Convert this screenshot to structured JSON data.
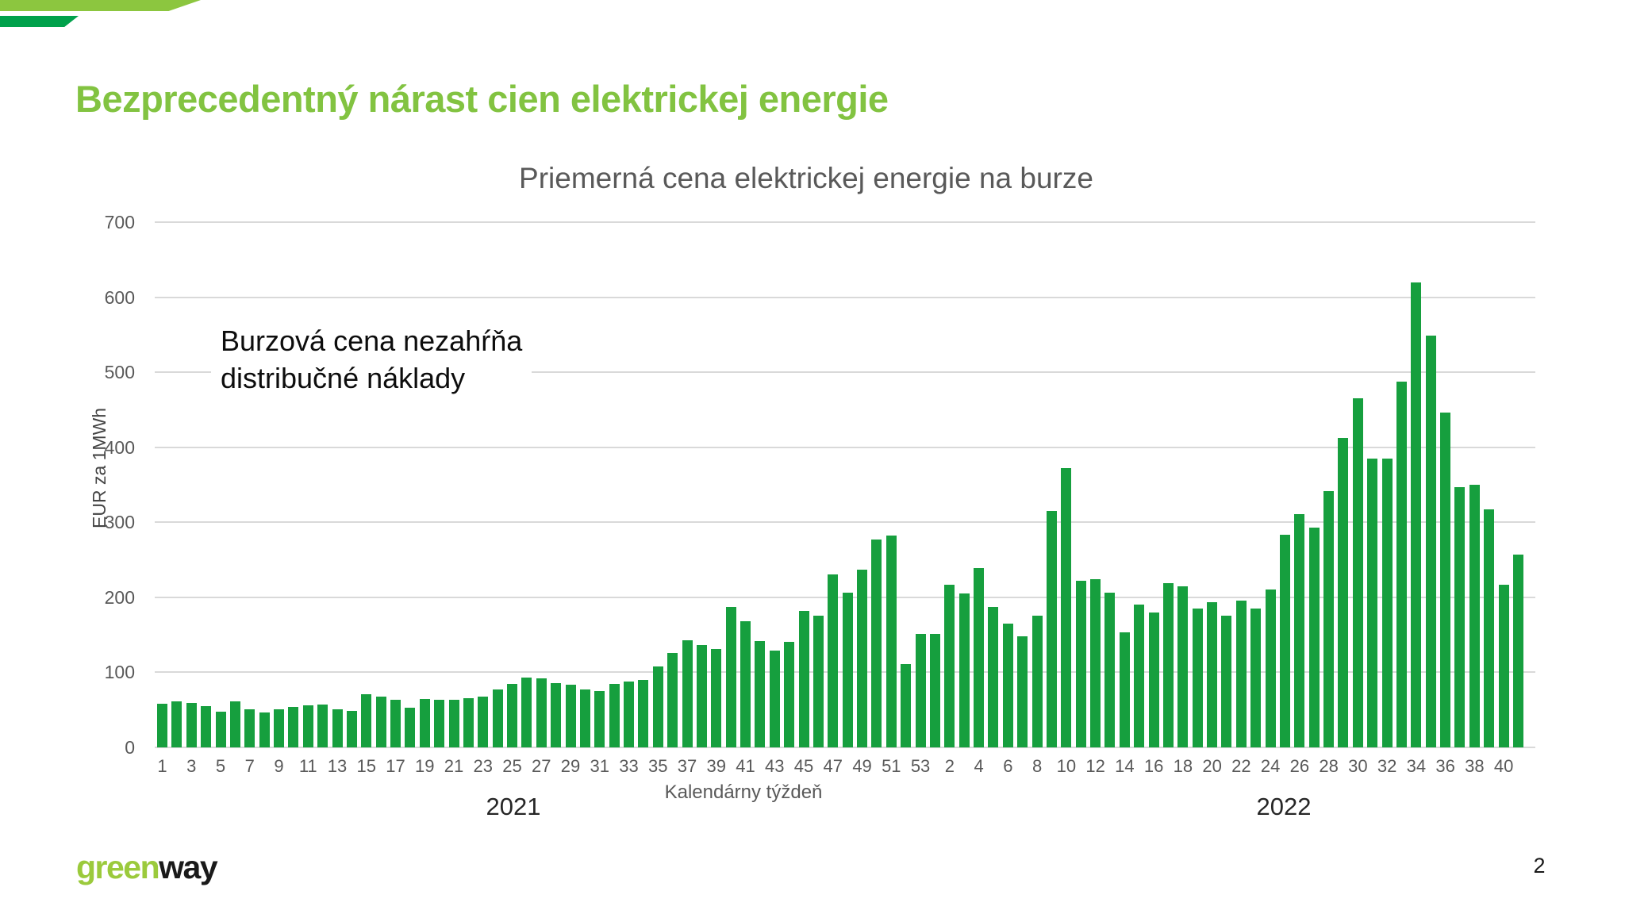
{
  "slide": {
    "title": "Bezprecedentný nárast cien elektrickej energie",
    "page_number": "2",
    "logo": {
      "green": "green",
      "way": "way"
    },
    "colors": {
      "accent_green": "#82C341",
      "deco_light_green": "#8CC63F",
      "deco_dark_green": "#00A14B",
      "bar_green": "#169F3E",
      "axis_gray": "#595959"
    }
  },
  "chart_data": {
    "type": "bar",
    "title": "Priemerná cena elektrickej energie na burze",
    "ylabel": "EUR za 1MWh",
    "xlabel": "Kalendárny týždeň",
    "annotation_lines": [
      "Burzová cena nezahŕňa",
      "distribučné náklady"
    ],
    "ylim": [
      0,
      700
    ],
    "yticks": [
      0,
      100,
      200,
      300,
      400,
      500,
      600,
      700
    ],
    "grid": true,
    "legend": "none",
    "bar_color": "#169F3E",
    "groups": [
      {
        "year": "2021",
        "weeks_labeled": [
          1,
          3,
          5,
          7,
          9,
          11,
          13,
          15,
          17,
          19,
          21,
          23,
          25,
          27,
          29,
          31,
          33,
          35,
          37,
          39,
          41,
          43,
          45,
          47,
          49,
          51,
          53
        ],
        "values": [
          58,
          61,
          59,
          55,
          48,
          61,
          51,
          47,
          51,
          54,
          56,
          57,
          51,
          49,
          71,
          68,
          63,
          53,
          64,
          63,
          63,
          66,
          68,
          77,
          85,
          93,
          92,
          86,
          84,
          77,
          75,
          85,
          88,
          90,
          108,
          126,
          143,
          136,
          131,
          187,
          168,
          142,
          129,
          141,
          182,
          176,
          231,
          206,
          237,
          277,
          282,
          111,
          151
        ]
      },
      {
        "year": "2022",
        "weeks_labeled": [
          2,
          4,
          6,
          8,
          10,
          12,
          14,
          16,
          18,
          20,
          22,
          24,
          26,
          28,
          30,
          32,
          34,
          36,
          38,
          40
        ],
        "values": [
          151,
          217,
          205,
          239,
          187,
          165,
          148,
          176,
          315,
          372,
          222,
          224,
          206,
          153,
          190,
          180,
          219,
          215,
          185,
          194,
          175,
          196,
          185,
          210,
          283,
          311,
          293,
          342,
          412,
          465,
          385,
          385,
          487,
          620,
          549,
          446,
          347,
          350,
          317,
          217,
          257
        ]
      }
    ]
  }
}
